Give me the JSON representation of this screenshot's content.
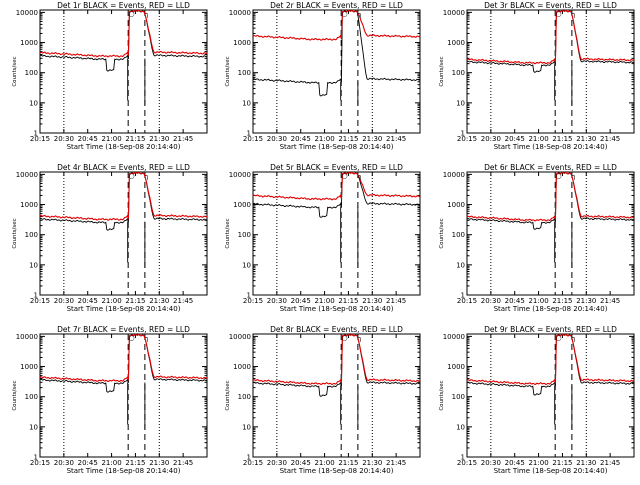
{
  "chart_data": [
    {
      "type": "line",
      "title": "Det 1r BLACK = Events, RED = LLD",
      "xlabel": "Start Time (18-Sep-08 20:14:40)",
      "ylabel": "Counts/sec",
      "x_ticks": [
        "20:15",
        "20:30",
        "20:45",
        "21:00",
        "21:15",
        "21:30",
        "21:45"
      ],
      "y_ticks": [
        "1",
        "10",
        "100",
        "1000",
        "10000"
      ],
      "ylim": [
        1,
        12000
      ],
      "log_y": true,
      "marker": "D",
      "series": [
        {
          "color": "#000000",
          "base": 330,
          "dip": 120
        },
        {
          "color": "#e00000",
          "base": 420,
          "dip": null
        }
      ]
    },
    {
      "type": "line",
      "title": "Det 2r BLACK = Events, RED = LLD",
      "xlabel": "Start Time (18-Sep-08 20:14:40)",
      "ylabel": "Counts/sec",
      "x_ticks": [
        "20:15",
        "20:30",
        "20:45",
        "21:00",
        "21:15",
        "21:30",
        "21:45"
      ],
      "y_ticks": [
        "1",
        "10",
        "100",
        "1000",
        "10000"
      ],
      "ylim": [
        1,
        12000
      ],
      "log_y": true,
      "marker": "D",
      "series": [
        {
          "color": "#000000",
          "base": 55,
          "dip": 18
        },
        {
          "color": "#e00000",
          "base": 1500,
          "dip": null
        }
      ]
    },
    {
      "type": "line",
      "title": "Det 3r BLACK = Events, RED = LLD",
      "xlabel": "Start Time (18-Sep-08 20:14:40)",
      "ylabel": "Counts/sec",
      "x_ticks": [
        "20:15",
        "20:30",
        "20:45",
        "21:00",
        "21:15",
        "21:30",
        "21:45"
      ],
      "y_ticks": [
        "1",
        "10",
        "100",
        "1000",
        "10000"
      ],
      "ylim": [
        1,
        12000
      ],
      "log_y": true,
      "marker": "D",
      "series": [
        {
          "color": "#000000",
          "base": 210,
          "dip": 110
        },
        {
          "color": "#e00000",
          "base": 250,
          "dip": null
        }
      ]
    },
    {
      "type": "line",
      "title": "Det 4r BLACK = Events, RED = LLD",
      "xlabel": "Start Time (18-Sep-08 20:14:40)",
      "ylabel": "Counts/sec",
      "x_ticks": [
        "20:15",
        "20:30",
        "20:45",
        "21:00",
        "21:15",
        "21:30",
        "21:45"
      ],
      "y_ticks": [
        "1",
        "10",
        "100",
        "1000",
        "10000"
      ],
      "ylim": [
        1,
        12000
      ],
      "log_y": true,
      "marker": "D",
      "series": [
        {
          "color": "#000000",
          "base": 300,
          "dip": 150
        },
        {
          "color": "#e00000",
          "base": 380,
          "dip": null
        }
      ]
    },
    {
      "type": "line",
      "title": "Det 5r BLACK = Events, RED = LLD",
      "xlabel": "Start Time (18-Sep-08 20:14:40)",
      "ylabel": "Counts/sec",
      "x_ticks": [
        "20:15",
        "20:30",
        "20:45",
        "21:00",
        "21:15",
        "21:30",
        "21:45"
      ],
      "y_ticks": [
        "1",
        "10",
        "100",
        "1000",
        "10000"
      ],
      "ylim": [
        1,
        12000
      ],
      "log_y": true,
      "marker": "D",
      "series": [
        {
          "color": "#000000",
          "base": 950,
          "dip": 400
        },
        {
          "color": "#e00000",
          "base": 1800,
          "dip": null
        }
      ]
    },
    {
      "type": "line",
      "title": "Det 6r BLACK = Events, RED = LLD",
      "xlabel": "Start Time (18-Sep-08 20:14:40)",
      "ylabel": "Counts/sec",
      "x_ticks": [
        "20:15",
        "20:30",
        "20:45",
        "21:00",
        "21:15",
        "21:30",
        "21:45"
      ],
      "y_ticks": [
        "1",
        "10",
        "100",
        "1000",
        "10000"
      ],
      "ylim": [
        1,
        12000
      ],
      "log_y": true,
      "marker": "D",
      "series": [
        {
          "color": "#000000",
          "base": 300,
          "dip": 160
        },
        {
          "color": "#e00000",
          "base": 360,
          "dip": null
        }
      ]
    },
    {
      "type": "line",
      "title": "Det 7r BLACK = Events, RED = LLD",
      "xlabel": "Start Time (18-Sep-08 20:14:40)",
      "ylabel": "Counts/sec",
      "x_ticks": [
        "20:15",
        "20:30",
        "20:45",
        "21:00",
        "21:15",
        "21:30",
        "21:45"
      ],
      "y_ticks": [
        "1",
        "10",
        "100",
        "1000",
        "10000"
      ],
      "ylim": [
        1,
        12000
      ],
      "log_y": true,
      "marker": "D",
      "series": [
        {
          "color": "#000000",
          "base": 330,
          "dip": 150
        },
        {
          "color": "#e00000",
          "base": 400,
          "dip": null
        }
      ]
    },
    {
      "type": "line",
      "title": "Det 8r BLACK = Events, RED = LLD",
      "xlabel": "Start Time (18-Sep-08 20:14:40)",
      "ylabel": "Counts/sec",
      "x_ticks": [
        "20:15",
        "20:30",
        "20:45",
        "21:00",
        "21:15",
        "21:30",
        "21:45"
      ],
      "y_ticks": [
        "1",
        "10",
        "100",
        "1000",
        "10000"
      ],
      "ylim": [
        1,
        12000
      ],
      "log_y": true,
      "marker": "D",
      "series": [
        {
          "color": "#000000",
          "base": 260,
          "dip": 110
        },
        {
          "color": "#e00000",
          "base": 320,
          "dip": null
        }
      ]
    },
    {
      "type": "line",
      "title": "Det 9r BLACK = Events, RED = LLD",
      "xlabel": "Start Time (18-Sep-08 20:14:40)",
      "ylabel": "Counts/sec",
      "x_ticks": [
        "20:15",
        "20:30",
        "20:45",
        "21:00",
        "21:15",
        "21:30",
        "21:45"
      ],
      "y_ticks": [
        "1",
        "10",
        "100",
        "1000",
        "10000"
      ],
      "ylim": [
        1,
        12000
      ],
      "log_y": true,
      "marker": "D",
      "series": [
        {
          "color": "#000000",
          "base": 260,
          "dip": 120
        },
        {
          "color": "#e00000",
          "base": 320,
          "dip": null
        }
      ]
    }
  ]
}
